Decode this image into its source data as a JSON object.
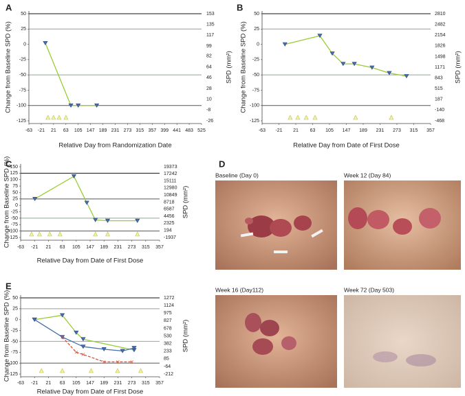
{
  "chart_data": [
    {
      "type": "line",
      "panel": "A",
      "x_label": "Relative Day from Randomization Date",
      "y_label": "Change from Baseline SPD (%)",
      "y2_label": "SPD (mm²)",
      "xlim": [
        -63,
        525
      ],
      "xticks": [
        -63,
        -21,
        21,
        63,
        105,
        147,
        189,
        231,
        273,
        315,
        357,
        399,
        441,
        483,
        525
      ],
      "ylim": [
        -125,
        50
      ],
      "yticks": [
        50,
        25,
        0,
        -25,
        -50,
        -75,
        -100,
        -125
      ],
      "y2lim": [
        -26,
        153
      ],
      "y2ticks": [
        153,
        135,
        117,
        99,
        82,
        64,
        46,
        28,
        10,
        -8,
        -26
      ],
      "ref_lines": [
        {
          "value": 50,
          "color": "#111111"
        },
        {
          "value": 25,
          "color": "#9a9a9a"
        },
        {
          "value": -50,
          "color": "#8fa88f"
        },
        {
          "value": -100,
          "color": "#555555"
        }
      ],
      "dose_days": [
        2,
        21,
        40,
        63
      ],
      "series": [
        {
          "color": "#99cc33",
          "x": [
            -7,
            80,
            105,
            168
          ],
          "values": [
            2,
            -100,
            -100,
            -100
          ]
        }
      ]
    },
    {
      "type": "line",
      "panel": "B",
      "x_label": "Relative Day from Date of First Dose",
      "y_label": "Change from Baseline SPD (%)",
      "y2_label": "SPD (mm²)",
      "xlim": [
        -63,
        357
      ],
      "xticks": [
        -63,
        -21,
        21,
        63,
        105,
        147,
        189,
        231,
        273,
        315,
        357
      ],
      "ylim": [
        -125,
        50
      ],
      "yticks": [
        50,
        25,
        0,
        -25,
        -50,
        -75,
        -100,
        -125
      ],
      "y2lim": [
        -468,
        2810
      ],
      "y2ticks": [
        2810,
        2482,
        2154,
        1826,
        1498,
        1171,
        843,
        515,
        187,
        -140,
        -468
      ],
      "ref_lines": [
        {
          "value": 50,
          "color": "#111111"
        },
        {
          "value": 25,
          "color": "#9a9a9a"
        },
        {
          "value": -50,
          "color": "#8fa88f"
        },
        {
          "value": -100,
          "color": "#555555"
        }
      ],
      "dose_days": [
        7,
        26,
        47,
        69,
        170,
        259
      ],
      "series": [
        {
          "color": "#99cc33",
          "x": [
            -6,
            81,
            112,
            139,
            167,
            211,
            254,
            297
          ],
          "values": [
            0,
            14,
            -15,
            -32,
            -32,
            -38,
            -47,
            -52
          ]
        }
      ]
    },
    {
      "type": "line",
      "panel": "C",
      "x_label": "Relative Day from Date of First Dose",
      "y_label": "Change from Baseline SPD (%)",
      "y2_label": "SPD (mm²)",
      "xlim": [
        -63,
        357
      ],
      "xticks": [
        -63,
        -21,
        21,
        63,
        105,
        147,
        189,
        231,
        273,
        315,
        357
      ],
      "ylim": [
        -125,
        150
      ],
      "yticks": [
        150,
        125,
        100,
        75,
        50,
        25,
        0,
        -25,
        -50,
        -75,
        -100,
        -125
      ],
      "y2lim": [
        -1937,
        19373
      ],
      "y2ticks": [
        19373,
        17242,
        15111,
        12980,
        10849,
        8718,
        6587,
        4456,
        2325,
        194,
        -1937
      ],
      "ref_lines": [
        {
          "value": 125,
          "color": "#111111"
        },
        {
          "value": 25,
          "color": "#555555"
        },
        {
          "value": -50,
          "color": "#8fa88f"
        },
        {
          "value": -100,
          "color": "#555555"
        }
      ],
      "dose_days": [
        -30,
        -6,
        25,
        56,
        163,
        200,
        290
      ],
      "series": [
        {
          "color": "#99cc33",
          "x": [
            -20,
            98,
            137,
            163,
            200,
            290
          ],
          "values": [
            25,
            113,
            10,
            -57,
            -60,
            -60
          ]
        }
      ]
    },
    {
      "type": "line",
      "panel": "E",
      "x_label": "Relative Day from Date of First Dose",
      "y_label": "Change from Baseline SPD (%)",
      "y2_label": "SPD (mm²)",
      "xlim": [
        -63,
        357
      ],
      "xticks": [
        -63,
        -21,
        21,
        63,
        105,
        147,
        189,
        231,
        273,
        315,
        357
      ],
      "ylim": [
        -125,
        50
      ],
      "yticks": [
        50,
        25,
        0,
        -25,
        -50,
        -75,
        -100,
        -125
      ],
      "y2lim": [
        -212,
        1272
      ],
      "y2ticks": [
        1272,
        1124,
        975,
        827,
        678,
        530,
        382,
        233,
        85,
        -64,
        -212
      ],
      "ref_lines": [
        {
          "value": 50,
          "color": "#111111"
        },
        {
          "value": 25,
          "color": "#9a9a9a"
        },
        {
          "value": -50,
          "color": "#8fa88f"
        },
        {
          "value": -100,
          "color": "#555555"
        }
      ],
      "dose_days": [
        0,
        63,
        150,
        230,
        300
      ],
      "series": [
        {
          "color": "#99cc33",
          "x": [
            -21,
            63,
            105,
            126,
            280
          ],
          "values": [
            0,
            10,
            -30,
            -45,
            -70
          ]
        },
        {
          "color": "#3f6fae",
          "x": [
            -21,
            63,
            126,
            189,
            245,
            280
          ],
          "values": [
            0,
            -40,
            -62,
            -68,
            -72,
            -65
          ]
        },
        {
          "color": "#e04a2a",
          "dashed": true,
          "x": [
            63,
            105,
            126,
            189,
            231,
            273
          ],
          "values": [
            -40,
            -75,
            -80,
            -97,
            -97,
            -97
          ]
        }
      ]
    }
  ],
  "photo_panel": {
    "label": "D",
    "photos": [
      {
        "caption": "Baseline (Day 0)"
      },
      {
        "caption": "Week 12 (Day 84)"
      },
      {
        "caption": "Week 16 (Day112)"
      },
      {
        "caption": "Week 72 (Day 503)"
      }
    ]
  }
}
